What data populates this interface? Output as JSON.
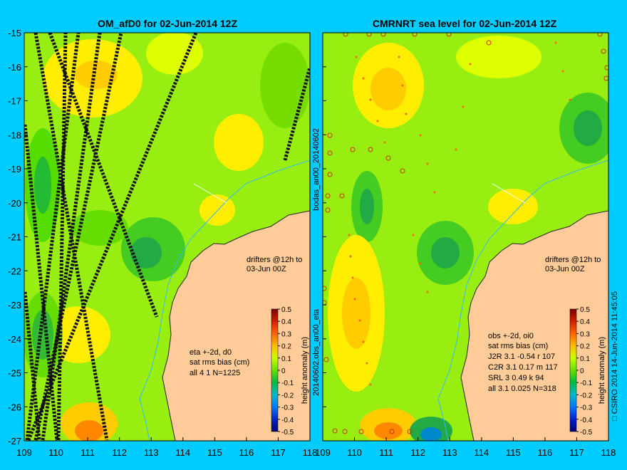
{
  "chart_data": [
    {
      "type": "heatmap",
      "title": "OM_afD0 for 02-Jun-2014 12Z",
      "x_ticks": [
        109,
        110,
        111,
        112,
        113,
        114,
        115,
        116,
        117,
        118
      ],
      "y_ticks": [
        -15,
        -16,
        -17,
        -18,
        -19,
        -20,
        -21,
        -22,
        -23,
        -24,
        -25,
        -26,
        -27
      ],
      "xlim": [
        109,
        118
      ],
      "ylim": [
        -27,
        -15
      ],
      "annotation_drifters": [
        "drifters @12h to",
        "03-Jun 00Z"
      ],
      "stats": [
        "eta +-2d, d0",
        "sat rms bias (cm)",
        "all 4 1 N=1225"
      ],
      "colorbar": {
        "label": "height anomaly (m)",
        "ticks": [
          "0.5",
          "0.4",
          "0.3",
          "0.2",
          "0.1",
          "0",
          "-0.1",
          "-0.2",
          "-0.3",
          "-0.4",
          "-0.5"
        ]
      },
      "side_label": "bodas_an00_20140602",
      "colors": {
        "land": "#ffcc99",
        "background": "#00ccff",
        "coast_line": "#33bbee"
      }
    },
    {
      "type": "heatmap",
      "title": "CMRNRT sea level  for 02-Jun-2014 12Z",
      "x_ticks": [
        109,
        110,
        111,
        112,
        113,
        114,
        115,
        116,
        117,
        118
      ],
      "y_ticks": [
        -15,
        -16,
        -17,
        -18,
        -19,
        -20,
        -21,
        -22,
        -23,
        -24,
        -25,
        -26,
        -27
      ],
      "xlim": [
        109,
        118
      ],
      "ylim": [
        -27,
        -15
      ],
      "annotation_drifters": [
        "drifters @12h to",
        "03-Jun 00Z"
      ],
      "stats": [
        "obs +-2d, oi0",
        "sat rms bias (cm)",
        "J2R   3.1 -0.54 r 107",
        "C2R   3.1 0.17 m 117",
        "SRL    3 0.49 k 94",
        "all   3.1 0.025 N=318"
      ],
      "colorbar": {
        "label": "height anomaly (m)",
        "ticks": [
          "0.5",
          "0.4",
          "0.3",
          "0.2",
          "0.1",
          "0",
          "-0.1",
          "-0.2",
          "-0.3",
          "-0.4",
          "-0.5"
        ]
      },
      "side_label": "20140602.obs_an00_eta",
      "credit": "□ CSIRO 2014  14-Jun-2014 11:45:05"
    }
  ]
}
